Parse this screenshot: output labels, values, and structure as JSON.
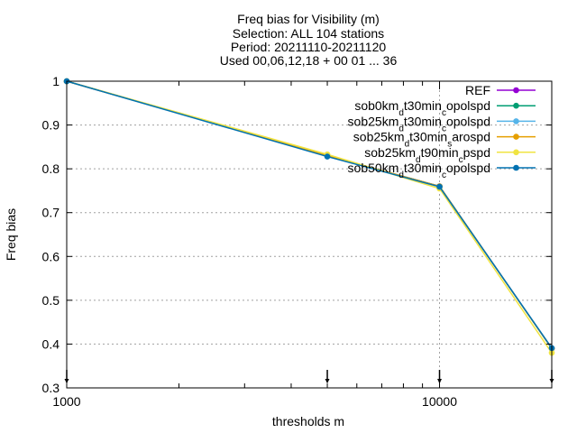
{
  "chart_data": {
    "type": "line",
    "title_lines": [
      "Freq bias  for Visibility (m)",
      "Selection: ALL     104 stations",
      "Period: 20211110-20211120",
      "Used 00,06,12,18 + 00 01 ... 36"
    ],
    "xlabel": "thresholds m",
    "ylabel": "Freq bias",
    "x_scale": "log",
    "xlim": [
      1000,
      20000
    ],
    "ylim": [
      0.3,
      1.0
    ],
    "x_ticks": [
      {
        "value": 1000,
        "label": "1000"
      },
      {
        "value": 10000,
        "label": "10000"
      }
    ],
    "y_ticks": [
      {
        "value": 0.3,
        "label": "0.3"
      },
      {
        "value": 0.4,
        "label": "0.4"
      },
      {
        "value": 0.5,
        "label": "0.5"
      },
      {
        "value": 0.6,
        "label": "0.6"
      },
      {
        "value": 0.7,
        "label": "0.7"
      },
      {
        "value": 0.8,
        "label": "0.8"
      },
      {
        "value": 0.9,
        "label": "0.9"
      },
      {
        "value": 1.0,
        "label": "1"
      }
    ],
    "grid": true,
    "legend_position": "top-right",
    "threshold_markers": [
      1000,
      5000,
      10000,
      20000
    ],
    "x": [
      1000,
      5000,
      10000,
      20000
    ],
    "series": [
      {
        "name": "REF",
        "label_parts": [
          [
            "REF",
            ""
          ]
        ],
        "color": "#9400d3",
        "values": [
          1.0,
          0.83,
          0.76,
          0.39
        ]
      },
      {
        "name": "sob0km_dt30min_copolspd",
        "label_parts": [
          [
            "sob0km",
            ""
          ],
          [
            "d",
            "sub"
          ],
          [
            "t30min",
            ""
          ],
          [
            "c",
            "sub"
          ],
          [
            "opolspd",
            ""
          ]
        ],
        "color": "#009e73",
        "values": [
          1.0,
          0.83,
          0.76,
          0.39
        ]
      },
      {
        "name": "sob25km_dt30min_copolspd",
        "label_parts": [
          [
            "sob25km",
            ""
          ],
          [
            "d",
            "sub"
          ],
          [
            "t30min",
            ""
          ],
          [
            "c",
            "sub"
          ],
          [
            "opolspd",
            ""
          ]
        ],
        "color": "#56b4e9",
        "values": [
          1.0,
          0.83,
          0.76,
          0.39
        ]
      },
      {
        "name": "sob25km_dt30min_sarospd",
        "label_parts": [
          [
            "sob25km",
            ""
          ],
          [
            "d",
            "sub"
          ],
          [
            "t30min",
            ""
          ],
          [
            "s",
            "sub"
          ],
          [
            "arospd",
            ""
          ]
        ],
        "color": "#e69f00",
        "values": [
          1.0,
          0.83,
          0.76,
          0.39
        ]
      },
      {
        "name": "sob25km_dt90min_cpspd",
        "label_parts": [
          [
            "sob25km",
            ""
          ],
          [
            "d",
            "sub"
          ],
          [
            "t90min",
            ""
          ],
          [
            "c",
            "sub"
          ],
          [
            "pspd",
            ""
          ]
        ],
        "color": "#f0e442",
        "values": [
          1.0,
          0.833,
          0.755,
          0.38
        ]
      },
      {
        "name": "sob50km_dt30min_copolspd",
        "label_parts": [
          [
            "sob50km",
            ""
          ],
          [
            "d",
            "sub"
          ],
          [
            "t30min",
            ""
          ],
          [
            "c",
            "sub"
          ],
          [
            "opolspd",
            ""
          ]
        ],
        "color": "#0072b2",
        "values": [
          1.0,
          0.828,
          0.759,
          0.391
        ]
      }
    ]
  }
}
